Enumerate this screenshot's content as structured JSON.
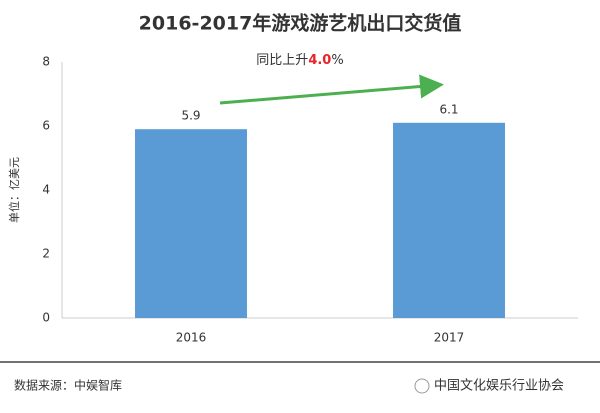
{
  "chart_data": {
    "type": "bar",
    "title": "2016-2017年游戏游艺机出口交货值",
    "y_label": "单位：亿美元",
    "categories": [
      "2016",
      "2017"
    ],
    "values": [
      5.9,
      6.1
    ],
    "color": "#5b9bd5",
    "ylim": [
      0,
      8
    ],
    "yticks": [
      0,
      2,
      4,
      6,
      8
    ],
    "grid": false,
    "annotation": {
      "prefix": "同比上升",
      "highlight": "4.0",
      "suffix": "%",
      "highlight_color": "#e8232a"
    }
  },
  "footer": {
    "source": "数据来源：中娱智库",
    "watermark": "中国文化娱乐行业协会"
  }
}
